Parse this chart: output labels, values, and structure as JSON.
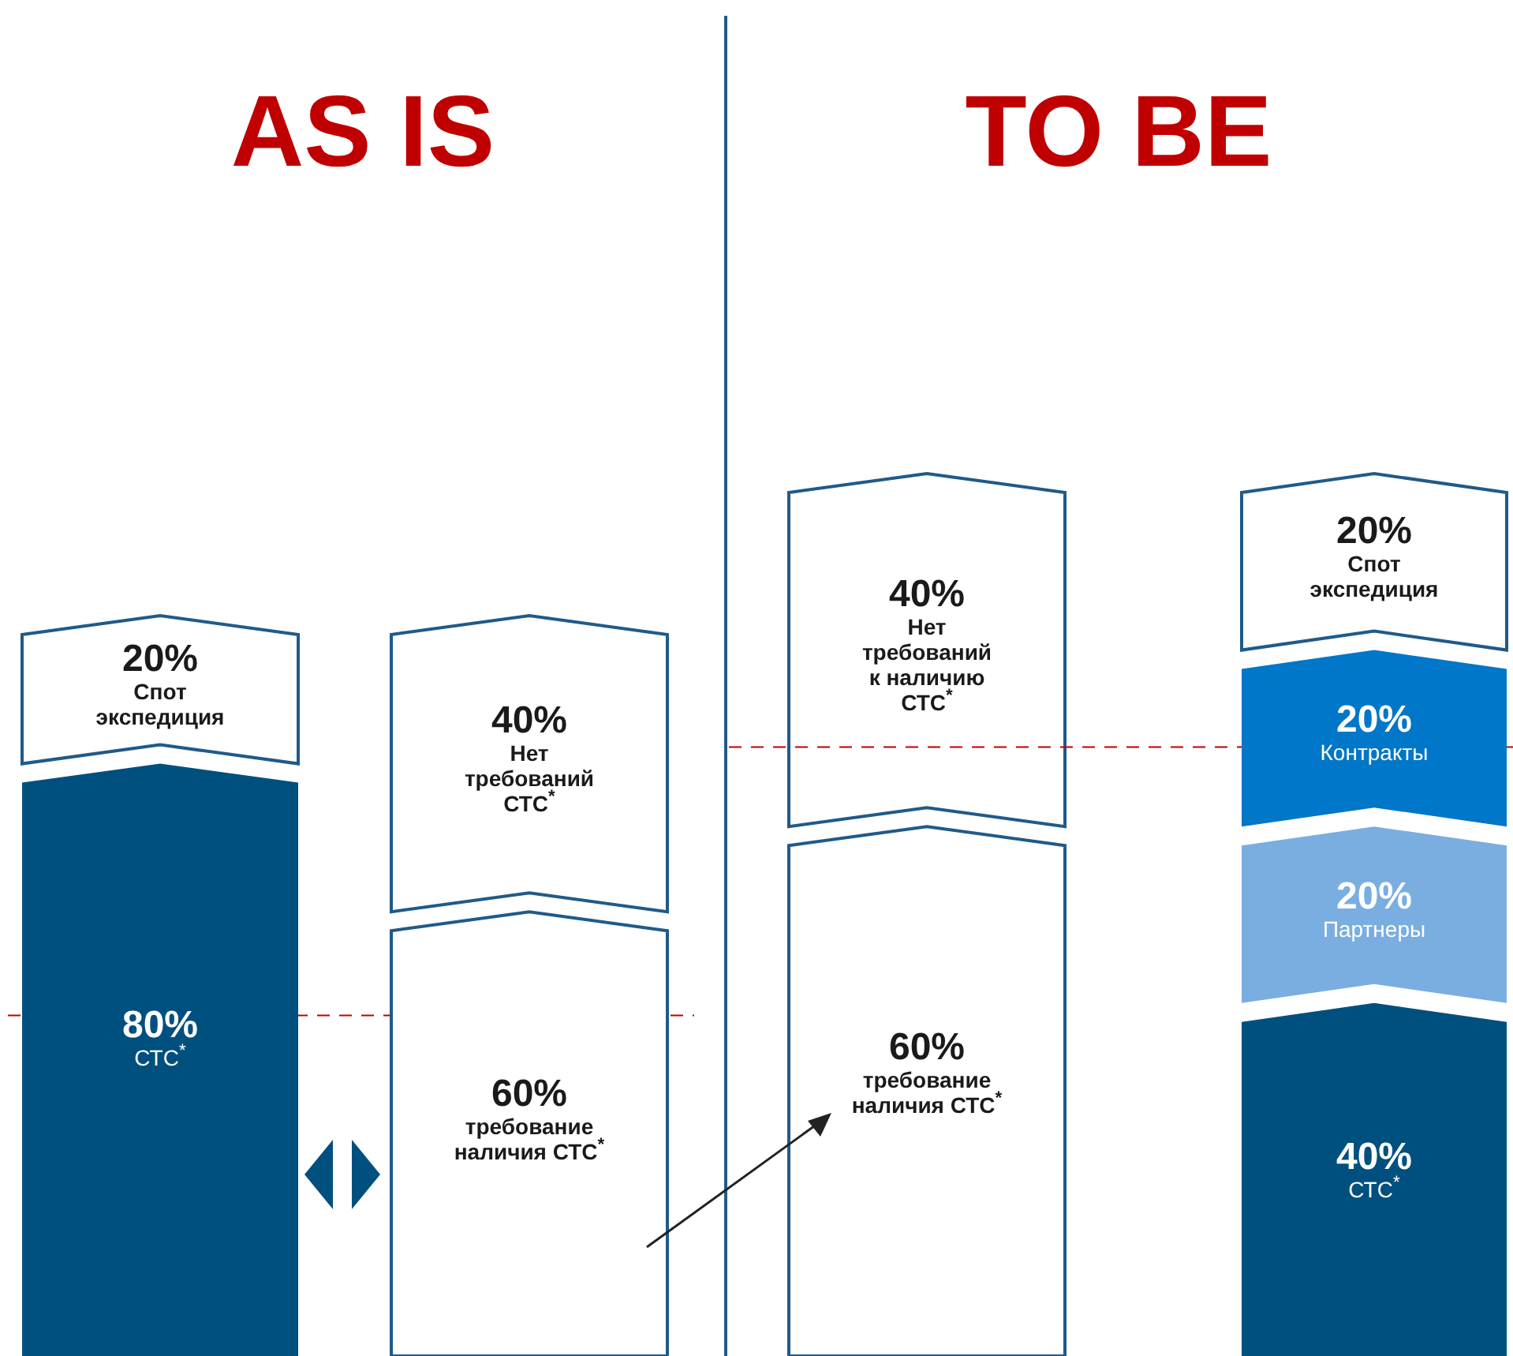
{
  "chart_data": [
    {
      "type": "bar",
      "title": "AS IS",
      "categories": [
        null,
        null
      ],
      "stacked": true,
      "series": [
        {
          "colors": [
            "#00507f",
            "#ffffff"
          ],
          "values": [
            80,
            60
          ],
          "value_labels": [
            "80%\nСТС$^{*}$",
            "60%\nтребование\nналичия СТС$^{*}$"
          ]
        },
        {
          "colors": [
            "#ffffff",
            "#ffffff"
          ],
          "values": [
            20,
            40
          ],
          "value_labels": [
            "20%\nСпот\nэкспедиция",
            "40%\nНет\nтребований\nСТС$^{*}$"
          ]
        }
      ],
      "ref_lines": [
        {
          "axis": "y",
          "value": 46,
          "color": "#c00000",
          "line_style": "dashed"
        }
      ]
    },
    {
      "type": "bar",
      "title": "TO BE",
      "categories": [
        null
      ],
      "stacked": true,
      "series": [
        {
          "color": "#ffffff",
          "values": [
            60
          ],
          "value_labels": [
            "60%\nтребование\nналичия СТС$^{*}$"
          ]
        },
        {
          "color": "#ffffff",
          "values": [
            40
          ],
          "value_labels": [
            "40%\nНет\nтребований\nк наличию\nСТС$^{*}$"
          ]
        }
      ]
    },
    {
      "type": "bar",
      "categories": [
        null
      ],
      "stacked": true,
      "series": [
        {
          "color": "#00507f",
          "values": [
            40
          ],
          "value_labels": [
            "40%\nСТС$^{*}$"
          ]
        },
        {
          "color": "#7aaee0",
          "values": [
            20
          ],
          "value_labels": [
            "20%\nПартнеры"
          ]
        },
        {
          "color": "#0077c8",
          "values": [
            20
          ],
          "value_labels": [
            "20%\nКонтракты"
          ]
        },
        {
          "color": "#ffffff",
          "values": [
            20
          ],
          "value_labels": [
            "20%\nСпот\nэкспедиция"
          ]
        }
      ],
      "ref_lines": [
        {
          "axis": "y",
          "value": 69,
          "color": "#c00000",
          "line_style": "dashed"
        }
      ]
    }
  ]
}
